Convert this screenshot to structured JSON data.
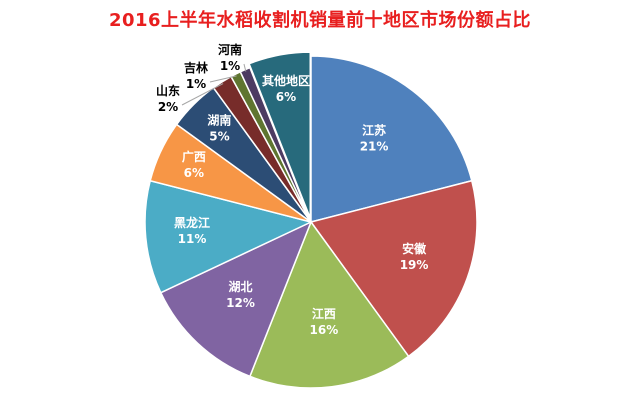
{
  "chart_data": {
    "type": "pie",
    "title": "2016上半年水稻收割机销量前十地区市场份额占比",
    "value_suffix": "%",
    "slices": [
      {
        "name": "江苏",
        "value": 21,
        "color": "#4f81bd"
      },
      {
        "name": "安徽",
        "value": 19,
        "color": "#c0504d"
      },
      {
        "name": "江西",
        "value": 16,
        "color": "#9bbb59"
      },
      {
        "name": "湖北",
        "value": 12,
        "color": "#8064a2"
      },
      {
        "name": "黑龙江",
        "value": 11,
        "color": "#4bacc6"
      },
      {
        "name": "广西",
        "value": 6,
        "color": "#f79646"
      },
      {
        "name": "湖南",
        "value": 5,
        "color": "#2c4d75"
      },
      {
        "name": "山东",
        "value": 2,
        "color": "#772c2a"
      },
      {
        "name": "吉林",
        "value": 1,
        "color": "#5f7530"
      },
      {
        "name": "河南",
        "value": 1,
        "color": "#4d3b62"
      },
      {
        "name": "其他地区",
        "value": 6,
        "color": "#276a7c"
      }
    ],
    "label_color_inside": "#ffffff",
    "label_color_outside": "#000000",
    "start_angle": "12 o'clock",
    "direction": "clockwise",
    "legend": "none"
  }
}
